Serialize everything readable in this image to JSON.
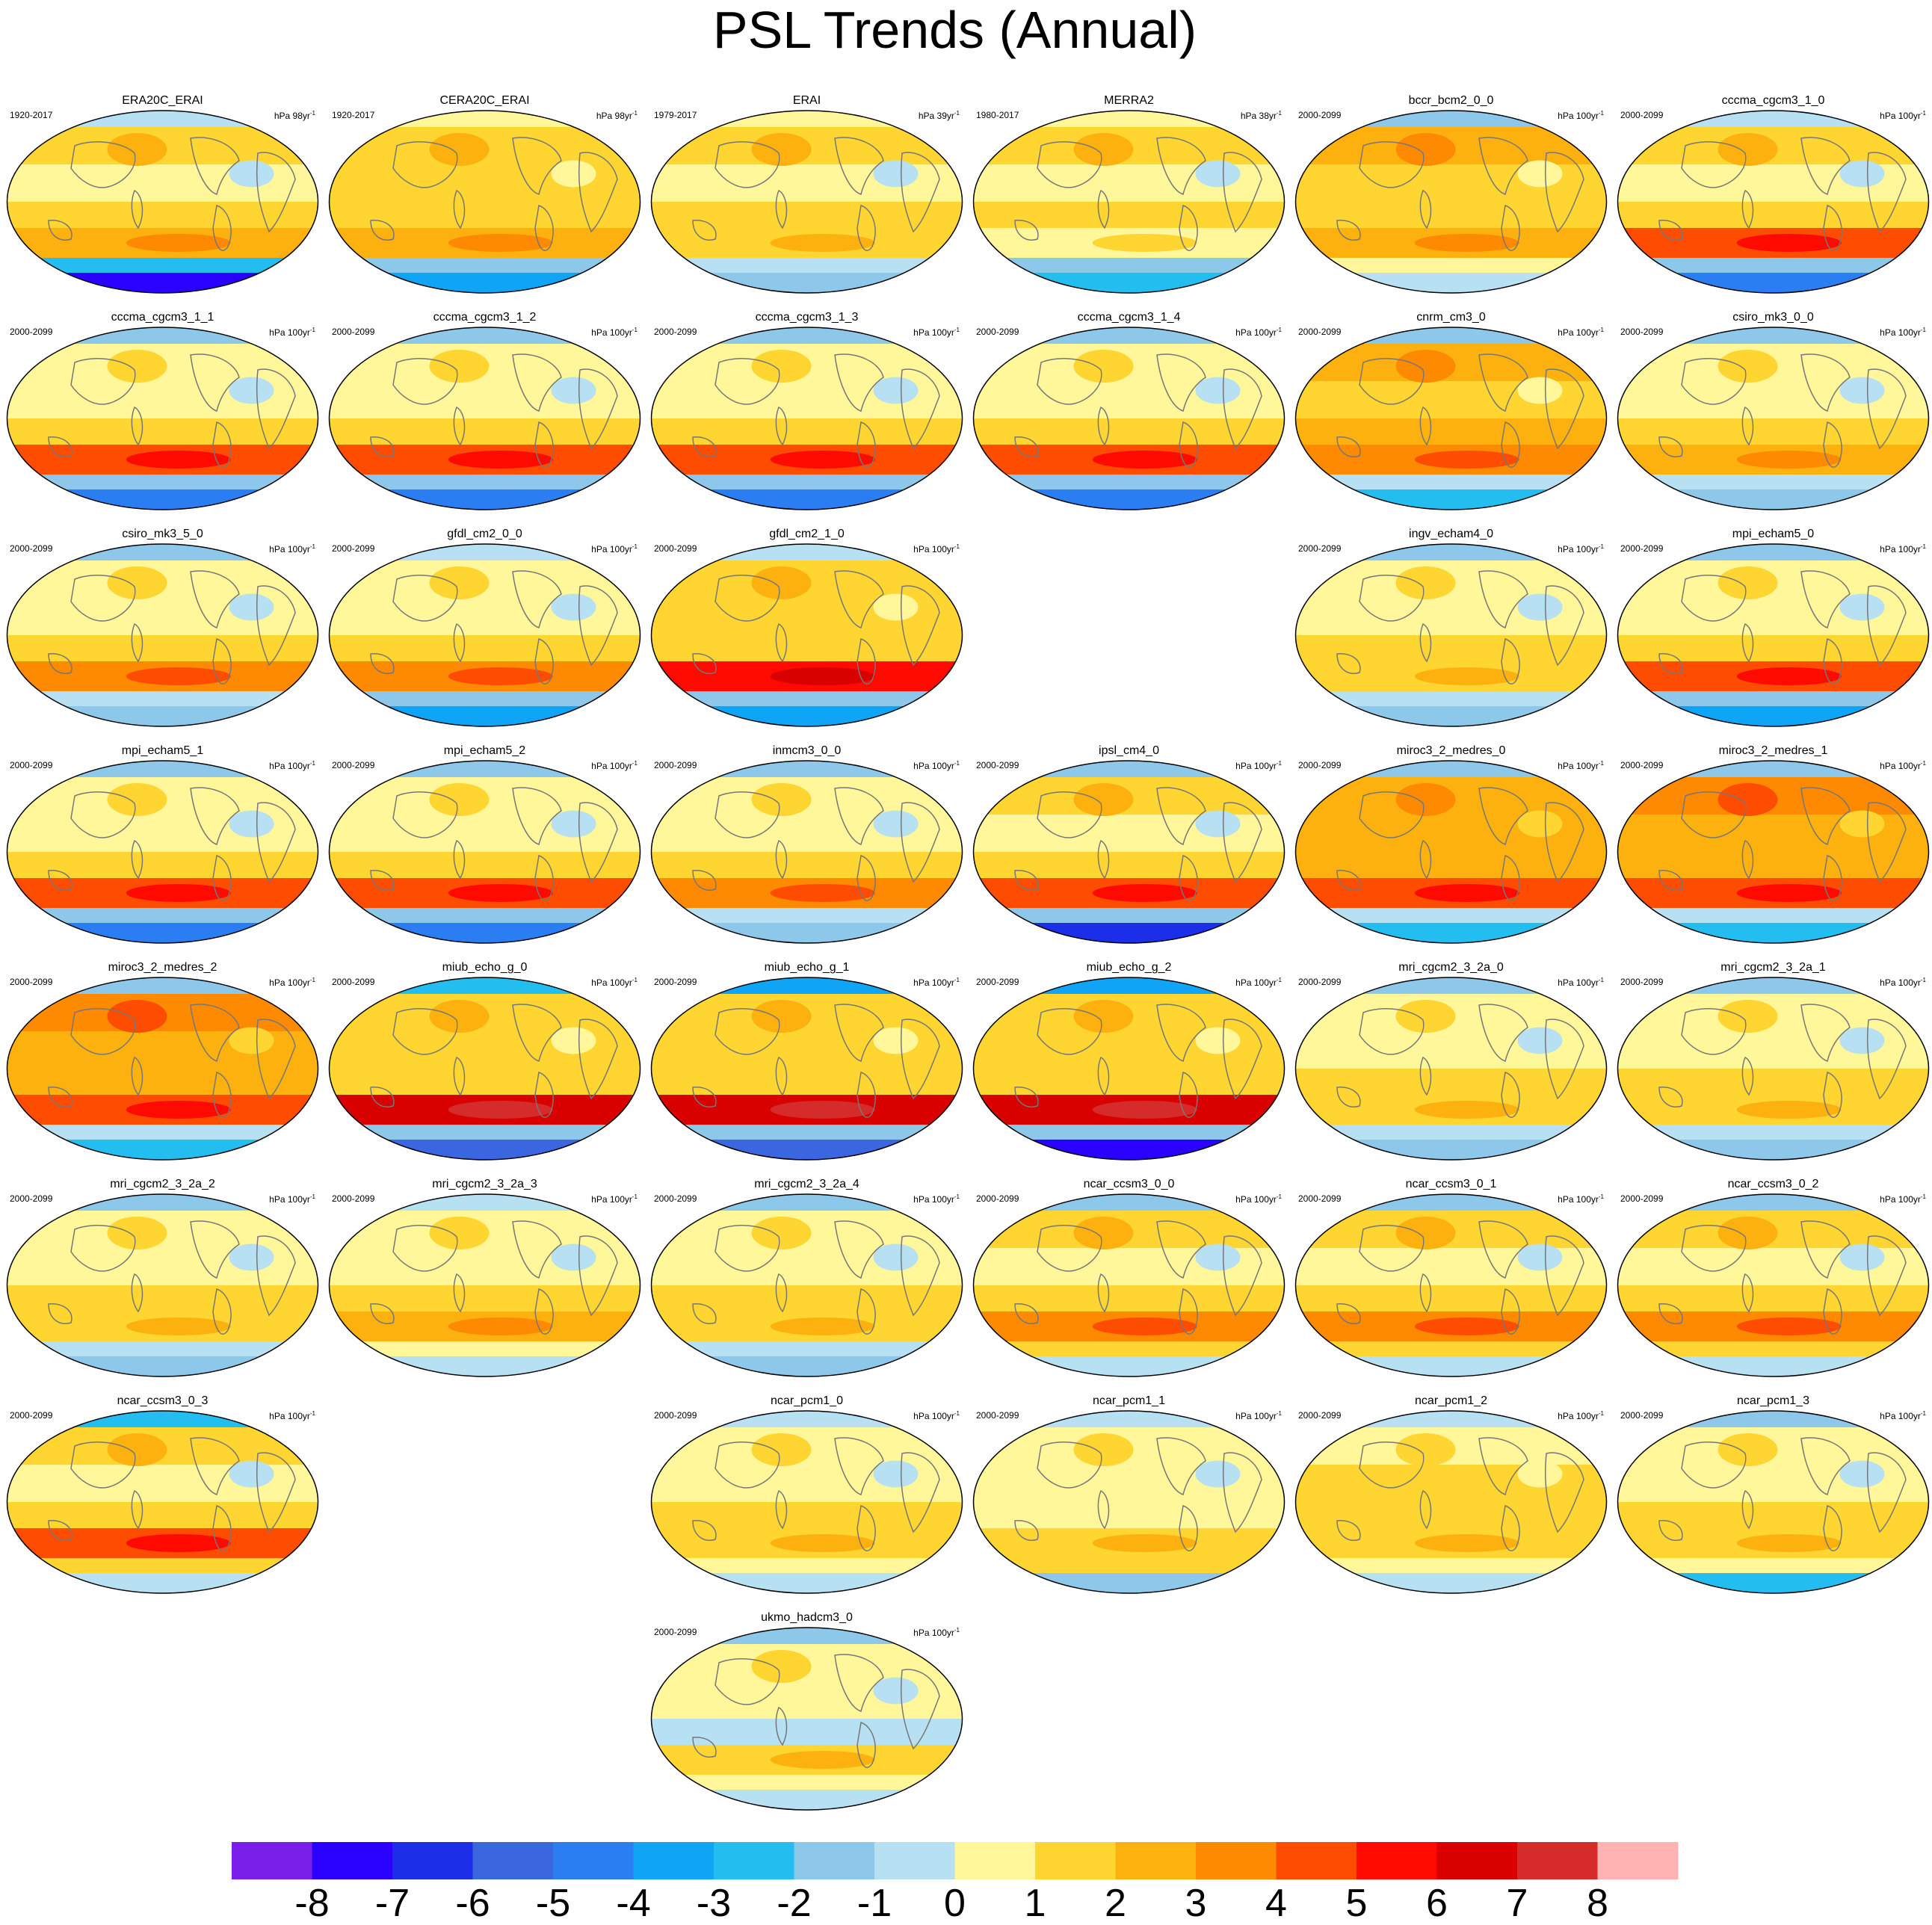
{
  "chart_data": {
    "type": "heatmap",
    "title": "PSL Trends (Annual)",
    "colorbar": {
      "ticks": [
        "-8",
        "-7",
        "-6",
        "-5",
        "-4",
        "-3",
        "-2",
        "-1",
        "0",
        "1",
        "2",
        "3",
        "4",
        "5",
        "6",
        "7",
        "8"
      ],
      "colors": [
        "#7a1fea",
        "#2a00ff",
        "#1c2ee8",
        "#3a66e0",
        "#2b7ef2",
        "#10a4f7",
        "#24bdf0",
        "#8dc8ea",
        "#b7e0f2",
        "#fff79a",
        "#fed531",
        "#fdb10f",
        "#fd8a00",
        "#fe4d00",
        "#ff0a00",
        "#d90000",
        "#d52b2b",
        "#ffb3b3"
      ]
    },
    "panels": [
      {
        "name": "ERA20C_ERAI",
        "period": "1920-2017",
        "units": "hPa 98yr",
        "row": 0,
        "col": 0,
        "band": [
          -8,
          -3,
          2,
          1,
          0,
          1,
          -1
        ]
      },
      {
        "name": "CERA20C_ERAI",
        "period": "1920-2017",
        "units": "hPa 98yr",
        "row": 0,
        "col": 1,
        "band": [
          -4,
          -2,
          2,
          1,
          1,
          1,
          0
        ]
      },
      {
        "name": "ERAI",
        "period": "1979-2017",
        "units": "hPa 39yr",
        "row": 0,
        "col": 2,
        "band": [
          -2,
          -1,
          1,
          1,
          0,
          1,
          0
        ]
      },
      {
        "name": "MERRA2",
        "period": "1980-2017",
        "units": "hPa 38yr",
        "row": 0,
        "col": 3,
        "band": [
          -3,
          -2,
          0,
          1,
          0,
          1,
          0
        ]
      },
      {
        "name": "bccr_bcm2_0_0",
        "period": "2000-2099",
        "units": "hPa 100yr",
        "row": 0,
        "col": 4,
        "band": [
          -1,
          0,
          2,
          1,
          1,
          2,
          -2
        ]
      },
      {
        "name": "cccma_cgcm3_1_0",
        "period": "2000-2099",
        "units": "hPa 100yr",
        "row": 0,
        "col": 5,
        "band": [
          -5,
          -2,
          4,
          1,
          0,
          1,
          -1
        ]
      },
      {
        "name": "cccma_cgcm3_1_1",
        "period": "2000-2099",
        "units": "hPa 100yr",
        "row": 1,
        "col": 0,
        "band": [
          -5,
          -2,
          4,
          1,
          0,
          0,
          -2
        ]
      },
      {
        "name": "cccma_cgcm3_1_2",
        "period": "2000-2099",
        "units": "hPa 100yr",
        "row": 1,
        "col": 1,
        "band": [
          -5,
          -2,
          4,
          1,
          0,
          0,
          -2
        ]
      },
      {
        "name": "cccma_cgcm3_1_3",
        "period": "2000-2099",
        "units": "hPa 100yr",
        "row": 1,
        "col": 2,
        "band": [
          -5,
          -2,
          4,
          1,
          0,
          0,
          -2
        ]
      },
      {
        "name": "cccma_cgcm3_1_4",
        "period": "2000-2099",
        "units": "hPa 100yr",
        "row": 1,
        "col": 3,
        "band": [
          -5,
          -2,
          4,
          1,
          0,
          0,
          -2
        ]
      },
      {
        "name": "cnrm_cm3_0",
        "period": "2000-2099",
        "units": "hPa 100yr",
        "row": 1,
        "col": 4,
        "band": [
          -3,
          -1,
          3,
          2,
          1,
          2,
          -2
        ]
      },
      {
        "name": "csiro_mk3_0_0",
        "period": "2000-2099",
        "units": "hPa 100yr",
        "row": 1,
        "col": 5,
        "band": [
          -2,
          -1,
          2,
          1,
          0,
          0,
          -2
        ]
      },
      {
        "name": "csiro_mk3_5_0",
        "period": "2000-2099",
        "units": "hPa 100yr",
        "row": 2,
        "col": 0,
        "band": [
          -2,
          -1,
          3,
          1,
          0,
          0,
          -2
        ]
      },
      {
        "name": "gfdl_cm2_0_0",
        "period": "2000-2099",
        "units": "hPa 100yr",
        "row": 2,
        "col": 1,
        "band": [
          -4,
          -2,
          3,
          1,
          0,
          0,
          -1
        ]
      },
      {
        "name": "gfdl_cm2_1_0",
        "period": "2000-2099",
        "units": "hPa 100yr",
        "row": 2,
        "col": 2,
        "band": [
          -4,
          -2,
          5,
          1,
          1,
          1,
          -1
        ]
      },
      {
        "name": "ingv_echam4_0",
        "period": "2000-2099",
        "units": "hPa 100yr",
        "row": 2,
        "col": 4,
        "band": [
          -2,
          -1,
          1,
          1,
          0,
          0,
          -2
        ]
      },
      {
        "name": "mpi_echam5_0",
        "period": "2000-2099",
        "units": "hPa 100yr",
        "row": 2,
        "col": 5,
        "band": [
          -4,
          -2,
          4,
          1,
          0,
          0,
          -2
        ]
      },
      {
        "name": "mpi_echam5_1",
        "period": "2000-2099",
        "units": "hPa 100yr",
        "row": 3,
        "col": 0,
        "band": [
          -5,
          -2,
          4,
          1,
          0,
          0,
          -2
        ]
      },
      {
        "name": "mpi_echam5_2",
        "period": "2000-2099",
        "units": "hPa 100yr",
        "row": 3,
        "col": 1,
        "band": [
          -5,
          -2,
          4,
          1,
          0,
          0,
          -2
        ]
      },
      {
        "name": "inmcm3_0_0",
        "period": "2000-2099",
        "units": "hPa 100yr",
        "row": 3,
        "col": 2,
        "band": [
          -2,
          -1,
          3,
          1,
          0,
          0,
          -2
        ]
      },
      {
        "name": "ipsl_cm4_0",
        "period": "2000-2099",
        "units": "hPa 100yr",
        "row": 3,
        "col": 3,
        "band": [
          -7,
          -2,
          4,
          1,
          0,
          1,
          -2
        ]
      },
      {
        "name": "miroc3_2_medres_0",
        "period": "2000-2099",
        "units": "hPa 100yr",
        "row": 3,
        "col": 4,
        "band": [
          -3,
          -1,
          4,
          2,
          2,
          2,
          -2
        ]
      },
      {
        "name": "miroc3_2_medres_1",
        "period": "2000-2099",
        "units": "hPa 100yr",
        "row": 3,
        "col": 5,
        "band": [
          -3,
          -1,
          4,
          2,
          2,
          3,
          -2
        ]
      },
      {
        "name": "miroc3_2_medres_2",
        "period": "2000-2099",
        "units": "hPa 100yr",
        "row": 4,
        "col": 0,
        "band": [
          -3,
          -1,
          4,
          2,
          2,
          3,
          -2
        ]
      },
      {
        "name": "miub_echo_g_0",
        "period": "2000-2099",
        "units": "hPa 100yr",
        "row": 4,
        "col": 1,
        "band": [
          -6,
          -2,
          6,
          1,
          1,
          1,
          -3
        ]
      },
      {
        "name": "miub_echo_g_1",
        "period": "2000-2099",
        "units": "hPa 100yr",
        "row": 4,
        "col": 2,
        "band": [
          -6,
          -2,
          6,
          1,
          1,
          1,
          -4
        ]
      },
      {
        "name": "miub_echo_g_2",
        "period": "2000-2099",
        "units": "hPa 100yr",
        "row": 4,
        "col": 3,
        "band": [
          -8,
          -2,
          6,
          1,
          1,
          1,
          -4
        ]
      },
      {
        "name": "mri_cgcm2_3_2a_0",
        "period": "2000-2099",
        "units": "hPa 100yr",
        "row": 4,
        "col": 4,
        "band": [
          -2,
          -1,
          1,
          1,
          0,
          0,
          -2
        ]
      },
      {
        "name": "mri_cgcm2_3_2a_1",
        "period": "2000-2099",
        "units": "hPa 100yr",
        "row": 4,
        "col": 5,
        "band": [
          -2,
          -1,
          1,
          1,
          0,
          0,
          -2
        ]
      },
      {
        "name": "mri_cgcm2_3_2a_2",
        "period": "2000-2099",
        "units": "hPa 100yr",
        "row": 5,
        "col": 0,
        "band": [
          -2,
          -1,
          1,
          1,
          0,
          0,
          -2
        ]
      },
      {
        "name": "mri_cgcm2_3_2a_3",
        "period": "2000-2099",
        "units": "hPa 100yr",
        "row": 5,
        "col": 1,
        "band": [
          -1,
          0,
          2,
          1,
          0,
          0,
          -1
        ]
      },
      {
        "name": "mri_cgcm2_3_2a_4",
        "period": "2000-2099",
        "units": "hPa 100yr",
        "row": 5,
        "col": 2,
        "band": [
          -2,
          -1,
          1,
          1,
          0,
          0,
          -2
        ]
      },
      {
        "name": "ncar_ccsm3_0_0",
        "period": "2000-2099",
        "units": "hPa 100yr",
        "row": 5,
        "col": 3,
        "band": [
          -1,
          1,
          3,
          1,
          0,
          1,
          -2
        ]
      },
      {
        "name": "ncar_ccsm3_0_1",
        "period": "2000-2099",
        "units": "hPa 100yr",
        "row": 5,
        "col": 4,
        "band": [
          -1,
          1,
          3,
          1,
          0,
          1,
          -2
        ]
      },
      {
        "name": "ncar_ccsm3_0_2",
        "period": "2000-2099",
        "units": "hPa 100yr",
        "row": 5,
        "col": 5,
        "band": [
          -1,
          1,
          3,
          1,
          0,
          1,
          -2
        ]
      },
      {
        "name": "ncar_ccsm3_0_3",
        "period": "2000-2099",
        "units": "hPa 100yr",
        "row": 6,
        "col": 0,
        "band": [
          -1,
          1,
          4,
          1,
          0,
          1,
          -3
        ]
      },
      {
        "name": "ncar_pcm1_0",
        "period": "2000-2099",
        "units": "hPa 100yr",
        "row": 6,
        "col": 2,
        "band": [
          -1,
          0,
          1,
          1,
          0,
          0,
          -1
        ]
      },
      {
        "name": "ncar_pcm1_1",
        "period": "2000-2099",
        "units": "hPa 100yr",
        "row": 6,
        "col": 3,
        "band": [
          -2,
          1,
          1,
          0,
          0,
          0,
          -1
        ]
      },
      {
        "name": "ncar_pcm1_2",
        "period": "2000-2099",
        "units": "hPa 100yr",
        "row": 6,
        "col": 4,
        "band": [
          -1,
          0,
          1,
          1,
          1,
          0,
          -1
        ]
      },
      {
        "name": "ncar_pcm1_3",
        "period": "2000-2099",
        "units": "hPa 100yr",
        "row": 6,
        "col": 5,
        "band": [
          -3,
          0,
          1,
          1,
          0,
          0,
          -2
        ]
      },
      {
        "name": "ukmo_hadcm3_0",
        "period": "2000-2099",
        "units": "hPa 100yr",
        "row": 7,
        "col": 2,
        "band": [
          -1,
          0,
          1,
          -1,
          0,
          0,
          -2
        ]
      }
    ]
  }
}
